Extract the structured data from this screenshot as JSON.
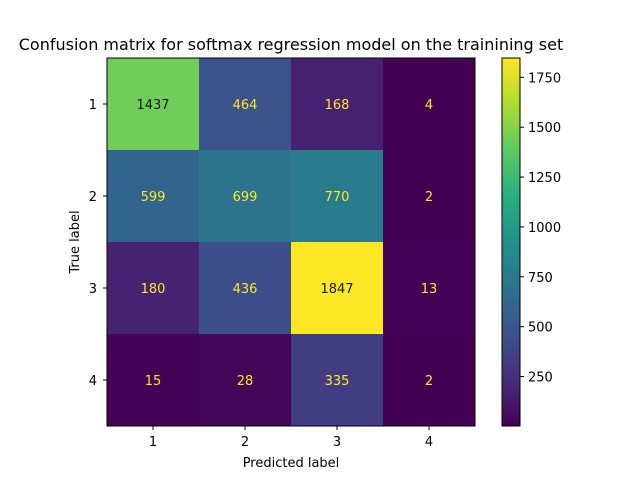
{
  "chart_data": {
    "type": "heatmap",
    "title": "Confusion matrix for softmax regression model on the trainining set",
    "xlabel": "Predicted label",
    "ylabel": "True label",
    "x_categories": [
      "1",
      "2",
      "3",
      "4"
    ],
    "y_categories": [
      "1",
      "2",
      "3",
      "4"
    ],
    "values": [
      [
        1437,
        464,
        168,
        4
      ],
      [
        599,
        699,
        770,
        2
      ],
      [
        180,
        436,
        1847,
        13
      ],
      [
        15,
        28,
        335,
        2
      ]
    ],
    "colormap": "viridis",
    "colorbar": {
      "range": [
        2,
        1847
      ],
      "ticks": [
        250,
        500,
        750,
        1000,
        1250,
        1500,
        1750
      ],
      "tick_labels": [
        "250",
        "500",
        "750",
        "1000",
        "1250",
        "1500",
        "1750"
      ]
    },
    "annotation_colors": {
      "dark_cell_text": "#fde725",
      "light_cell_text": "#1a1a1a"
    }
  }
}
